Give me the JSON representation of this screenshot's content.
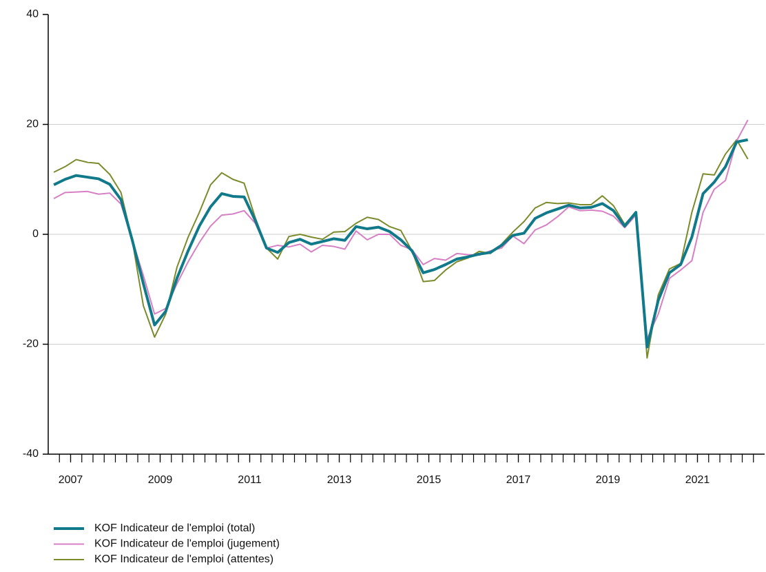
{
  "chart_data": {
    "type": "line",
    "x": [
      2006.625,
      2006.875,
      2007.125,
      2007.375,
      2007.625,
      2007.875,
      2008.125,
      2008.375,
      2008.625,
      2008.875,
      2009.125,
      2009.375,
      2009.625,
      2009.875,
      2010.125,
      2010.375,
      2010.625,
      2010.875,
      2011.125,
      2011.375,
      2011.625,
      2011.875,
      2012.125,
      2012.375,
      2012.625,
      2012.875,
      2013.125,
      2013.375,
      2013.625,
      2013.875,
      2014.125,
      2014.375,
      2014.625,
      2014.875,
      2015.125,
      2015.375,
      2015.625,
      2015.875,
      2016.125,
      2016.375,
      2016.625,
      2016.875,
      2017.125,
      2017.375,
      2017.625,
      2017.875,
      2018.125,
      2018.375,
      2018.625,
      2018.875,
      2019.125,
      2019.375,
      2019.625,
      2019.875,
      2020.125,
      2020.375,
      2020.625,
      2020.875,
      2021.125,
      2021.375,
      2021.625,
      2021.875,
      2022.125
    ],
    "series": [
      {
        "name": "KOF Indicateur de l'emploi (total)",
        "color": "#10798a",
        "width": 4,
        "values": [
          9,
          10,
          10.7,
          10.4,
          10.1,
          9.1,
          6.3,
          -1,
          -9,
          -16.5,
          -14,
          -8,
          -3,
          1.5,
          5,
          7.4,
          6.9,
          6.8,
          2.5,
          -2.5,
          -3.3,
          -1.5,
          -0.9,
          -1.8,
          -1.3,
          -0.8,
          -1.1,
          1.4,
          1,
          1.3,
          0.5,
          -1,
          -3,
          -7,
          -6.4,
          -5.5,
          -4.5,
          -4.1,
          -3.6,
          -3.3,
          -2,
          -0.2,
          0.2,
          2.9,
          3.9,
          4.6,
          5.3,
          4.8,
          4.9,
          5.6,
          4.3,
          1.5,
          4,
          -20.5,
          -12,
          -7,
          -5.5,
          -0.5,
          7.4,
          9.5,
          12.3,
          16.8,
          17.2
        ]
      },
      {
        "name": "KOF Indicateur de l'emploi (jugement)",
        "color": "#d67fc4",
        "width": 2,
        "values": [
          6.5,
          7.6,
          7.7,
          7.8,
          7.3,
          7.5,
          5.5,
          -1,
          -7.5,
          -14.5,
          -13.5,
          -9,
          -5,
          -1.5,
          1.5,
          3.5,
          3.7,
          4.3,
          2,
          -2.5,
          -2,
          -2.3,
          -1.8,
          -3.2,
          -2,
          -2.2,
          -2.7,
          0.6,
          -1,
          0,
          0,
          -2,
          -2.8,
          -5.5,
          -4.4,
          -4.7,
          -3.5,
          -3.7,
          -3.8,
          -3,
          -2.5,
          -0.3,
          -1.7,
          0.8,
          1.7,
          3.2,
          5,
          4.3,
          4.4,
          4.2,
          3.3,
          1.2,
          3.5,
          -19,
          -14.5,
          -8,
          -6.5,
          -4.8,
          4,
          8.2,
          9.8,
          17,
          20.8
        ]
      },
      {
        "name": "KOF Indicateur de l'emploi (attentes)",
        "color": "#7b8a2a",
        "width": 2,
        "values": [
          11.3,
          12.3,
          13.6,
          13.1,
          12.9,
          10.9,
          7.6,
          -1,
          -13,
          -18.7,
          -14.5,
          -6,
          -0.5,
          4,
          9,
          11.2,
          10,
          9.3,
          3,
          -2.5,
          -4.5,
          -0.4,
          0,
          -0.5,
          -0.9,
          0.4,
          0.5,
          2,
          3.1,
          2.7,
          1.4,
          0.7,
          -3,
          -8.6,
          -8.4,
          -6.5,
          -5,
          -4.3,
          -3.1,
          -3.5,
          -1.8,
          0.4,
          2.3,
          4.8,
          5.8,
          5.6,
          5.7,
          5.4,
          5.4,
          7,
          5.2,
          1.8,
          4,
          -22.5,
          -11,
          -6.3,
          -5.3,
          4,
          11,
          10.8,
          14.6,
          17.2,
          13.7
        ]
      }
    ],
    "xlim": [
      2006.5,
      2022.5
    ],
    "xticks": [
      2007,
      2009,
      2011,
      2013,
      2015,
      2017,
      2019,
      2021
    ],
    "ylim": [
      -40,
      40
    ],
    "yticks": [
      -40,
      -20,
      0,
      20,
      40
    ],
    "grid": true,
    "legend": "bottom"
  }
}
